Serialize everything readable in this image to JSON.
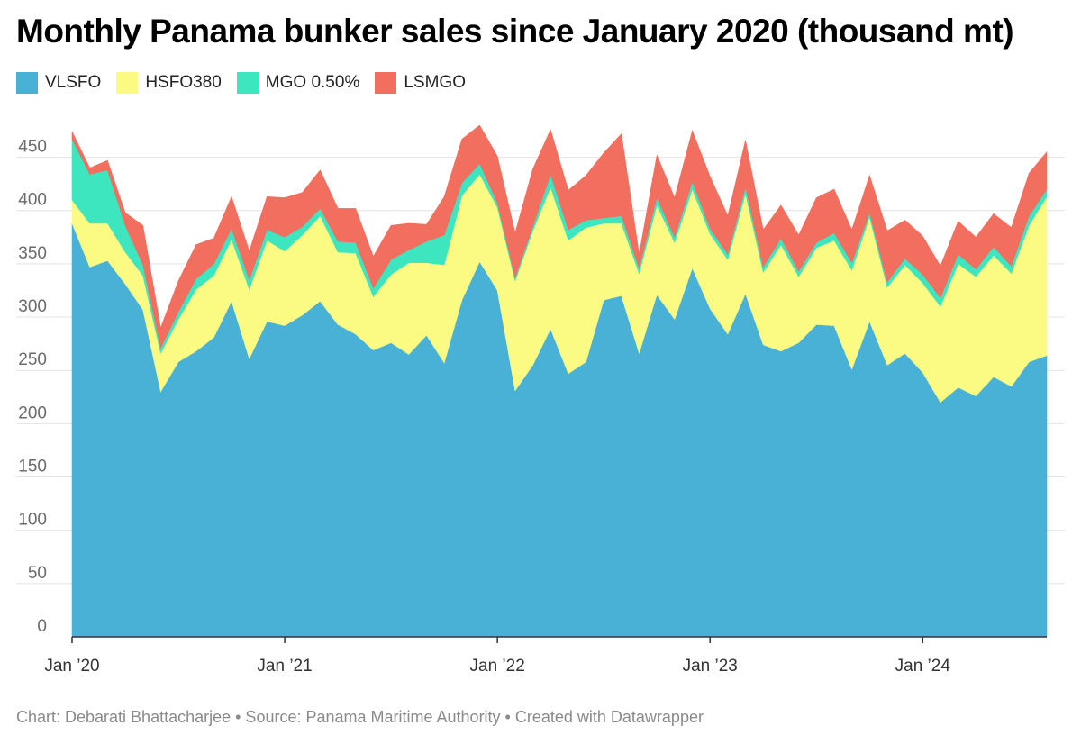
{
  "chart_data": {
    "type": "area",
    "stacked": true,
    "title": "Monthly Panama bunker sales since January 2020 (thousand mt)",
    "xlabel": "",
    "ylabel": "",
    "ylim": [
      0,
      475
    ],
    "yticks": [
      0,
      50,
      100,
      150,
      200,
      250,
      300,
      350,
      400,
      450
    ],
    "grid": true,
    "legend_position": "top-left",
    "x_tick_labels": [
      "Jan ’20",
      "Jan ’21",
      "Jan ’22",
      "Jan ’23",
      "Jan ’24"
    ],
    "x_tick_indices": [
      0,
      12,
      24,
      36,
      48
    ],
    "x_count": 56,
    "series": [
      {
        "name": "VLSFO",
        "color": "#49b1d6",
        "values": [
          388,
          347,
          353,
          331,
          307,
          230,
          258,
          268,
          281,
          315,
          261,
          296,
          292,
          302,
          315,
          293,
          284,
          269,
          276,
          265,
          283,
          257,
          316,
          352,
          325,
          231,
          255,
          289,
          247,
          258,
          316,
          320,
          266,
          321,
          298,
          346,
          308,
          284,
          322,
          274,
          268,
          276,
          293,
          292,
          251,
          296,
          255,
          266,
          248,
          220,
          234,
          226,
          244,
          235,
          258,
          264
        ]
      },
      {
        "name": "HSFO380",
        "color": "#fbfb84",
        "values": [
          22,
          41,
          35,
          30,
          32,
          36,
          40,
          58,
          58,
          58,
          65,
          76,
          70,
          75,
          80,
          68,
          76,
          50,
          64,
          86,
          68,
          92,
          98,
          82,
          78,
          103,
          126,
          133,
          125,
          126,
          72,
          68,
          75,
          84,
          72,
          74,
          70,
          70,
          94,
          68,
          100,
          62,
          72,
          80,
          93,
          98,
          73,
          83,
          84,
          90,
          116,
          112,
          114,
          106,
          128,
          149
        ]
      },
      {
        "name": "MGO 0.50%",
        "color": "#3ee6c0",
        "values": [
          57,
          46,
          50,
          25,
          10,
          5,
          7,
          10,
          11,
          10,
          9,
          10,
          13,
          8,
          7,
          10,
          10,
          8,
          14,
          12,
          20,
          28,
          12,
          10,
          4,
          3,
          4,
          12,
          10,
          7,
          5,
          7,
          5,
          7,
          5,
          7,
          5,
          5,
          6,
          5,
          6,
          5,
          5,
          7,
          7,
          4,
          5,
          6,
          8,
          8,
          9,
          7,
          8,
          7,
          9,
          7
        ]
      },
      {
        "name": "LSMGO",
        "color": "#f26e5e",
        "values": [
          7,
          6,
          9,
          12,
          37,
          19,
          29,
          32,
          24,
          30,
          27,
          31,
          37,
          32,
          36,
          31,
          32,
          30,
          32,
          25,
          16,
          36,
          41,
          36,
          44,
          42,
          54,
          42,
          37,
          42,
          61,
          77,
          13,
          40,
          37,
          48,
          49,
          36,
          44,
          35,
          31,
          34,
          42,
          41,
          31,
          35,
          48,
          36,
          36,
          30,
          31,
          30,
          31,
          36,
          40,
          35
        ]
      }
    ],
    "footer": "Chart: Debarati Bhattacharjee • Source: Panama Maritime Authority • Created with Datawrapper"
  }
}
